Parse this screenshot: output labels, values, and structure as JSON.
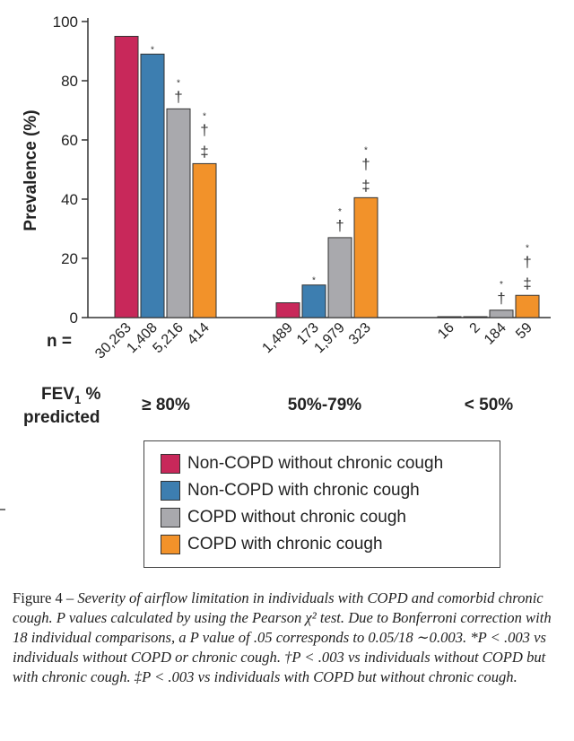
{
  "chart_data": {
    "type": "bar",
    "title": "",
    "ylabel": "Prevalence (%)",
    "xlabel": "FEV1 % predicted",
    "xlabel_main": "FEV",
    "xlabel_sub": "1",
    "xlabel_rest": " %",
    "xlabel_line2": "predicted",
    "ylim": [
      0,
      100
    ],
    "yticks": [
      0,
      20,
      40,
      60,
      80,
      100
    ],
    "n_label": "n =",
    "categories": [
      "≥ 80%",
      "50%-79%",
      "< 50%"
    ],
    "series": [
      {
        "name": "Non-COPD without chronic cough",
        "color": "#c8285a",
        "values": [
          95,
          5,
          0
        ],
        "n": [
          "30,263",
          "1,489",
          "16"
        ]
      },
      {
        "name": "Non-COPD with chronic cough",
        "color": "#3d7eb0",
        "values": [
          89,
          11,
          0
        ],
        "n": [
          "1,408",
          "173",
          "2"
        ]
      },
      {
        "name": "COPD without chronic cough",
        "color": "#a9a9ad",
        "values": [
          70.5,
          27,
          2.5
        ],
        "n": [
          "5,216",
          "1,979",
          "184"
        ]
      },
      {
        "name": "COPD with chronic cough",
        "color": "#f2922a",
        "values": [
          52,
          40.5,
          7.5
        ],
        "n": [
          "414",
          "323",
          "59"
        ]
      }
    ],
    "significance": [
      [
        "",
        "",
        ""
      ],
      [
        "*",
        "*",
        ""
      ],
      [
        "* †",
        "* †",
        "* †"
      ],
      [
        "* † ‡",
        "* † ‡",
        "* † ‡"
      ]
    ],
    "grid": false,
    "legend_position": "bottom"
  },
  "caption": {
    "figure": "Figure 4 – ",
    "text": "Severity of airflow limitation in individuals with COPD and comorbid chronic cough. P values calculated by using the Pearson χ² test. Due to Bonferroni correction with 18 individual comparisons, a P value of .05 corresponds to 0.05/18 ∼0.003. *P < .003 vs individuals without COPD or chronic cough. †P < .003 vs individuals without COPD but with chronic cough. ‡P < .003 vs individuals with COPD but without chronic cough."
  }
}
